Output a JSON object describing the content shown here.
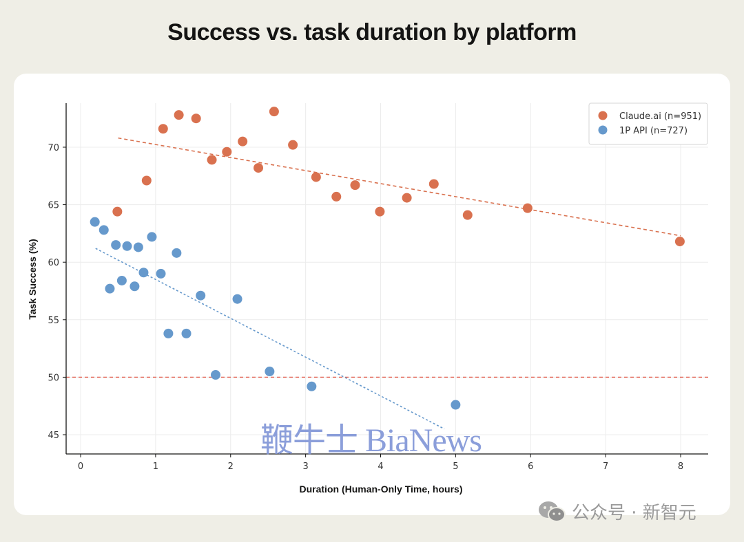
{
  "title": "Success vs. task duration by platform",
  "watermark": "鞭牛士 BiaNews",
  "wechat_caption": "公众号 · 新智元",
  "colors": {
    "background": "#efeee6",
    "card": "#ffffff",
    "claude": "#d9714f",
    "api": "#6699cc",
    "baseline": "#e05a4a"
  },
  "legend": [
    {
      "label": "Claude.ai (n=951)",
      "color": "#d9714f"
    },
    {
      "label": "1P API (n=727)",
      "color": "#6699cc"
    }
  ],
  "x_ticks": [
    "0",
    "1",
    "2",
    "3",
    "4",
    "5",
    "6",
    "7",
    "8"
  ],
  "y_ticks": [
    "45",
    "50",
    "55",
    "60",
    "65",
    "70"
  ],
  "chart_data": {
    "type": "scatter",
    "title": "Success vs. task duration by platform",
    "xlabel": "Duration (Human-Only Time, hours)",
    "ylabel": "Task Success (%)",
    "xlim": [
      -0.2,
      8.4
    ],
    "ylim": [
      43.3,
      73.8
    ],
    "grid": true,
    "legend_position": "upper right",
    "reference_line": {
      "y": 50,
      "style": "dashed",
      "color": "#e05a4a"
    },
    "series": [
      {
        "name": "Claude.ai (n=951)",
        "color": "#d9714f",
        "points": [
          [
            0.49,
            64.4
          ],
          [
            0.88,
            67.1
          ],
          [
            1.1,
            71.6
          ],
          [
            1.31,
            72.8
          ],
          [
            1.54,
            72.5
          ],
          [
            1.75,
            68.9
          ],
          [
            1.95,
            69.6
          ],
          [
            2.16,
            70.5
          ],
          [
            2.37,
            68.2
          ],
          [
            2.58,
            73.1
          ],
          [
            2.83,
            70.2
          ],
          [
            3.14,
            67.4
          ],
          [
            3.41,
            65.7
          ],
          [
            3.66,
            66.7
          ],
          [
            3.99,
            64.4
          ],
          [
            4.35,
            65.6
          ],
          [
            4.71,
            66.8
          ],
          [
            5.16,
            64.1
          ],
          [
            5.96,
            64.7
          ],
          [
            7.99,
            61.8
          ]
        ],
        "trendline": [
          [
            0.5,
            70.8
          ],
          [
            8.0,
            62.3
          ]
        ]
      },
      {
        "name": "1P API (n=727)",
        "color": "#6699cc",
        "points": [
          [
            0.19,
            63.5
          ],
          [
            0.31,
            62.8
          ],
          [
            0.47,
            61.5
          ],
          [
            0.62,
            61.4
          ],
          [
            0.77,
            61.3
          ],
          [
            0.95,
            62.2
          ],
          [
            1.28,
            60.8
          ],
          [
            0.39,
            57.7
          ],
          [
            0.55,
            58.4
          ],
          [
            0.72,
            57.9
          ],
          [
            0.84,
            59.1
          ],
          [
            1.07,
            59.0
          ],
          [
            1.6,
            57.1
          ],
          [
            2.09,
            56.8
          ],
          [
            1.17,
            53.8
          ],
          [
            1.41,
            53.8
          ],
          [
            1.8,
            50.2
          ],
          [
            2.52,
            50.5
          ],
          [
            3.08,
            49.2
          ],
          [
            5.0,
            47.6
          ]
        ],
        "trendline": [
          [
            0.2,
            61.2
          ],
          [
            4.85,
            45.5
          ]
        ]
      }
    ]
  }
}
